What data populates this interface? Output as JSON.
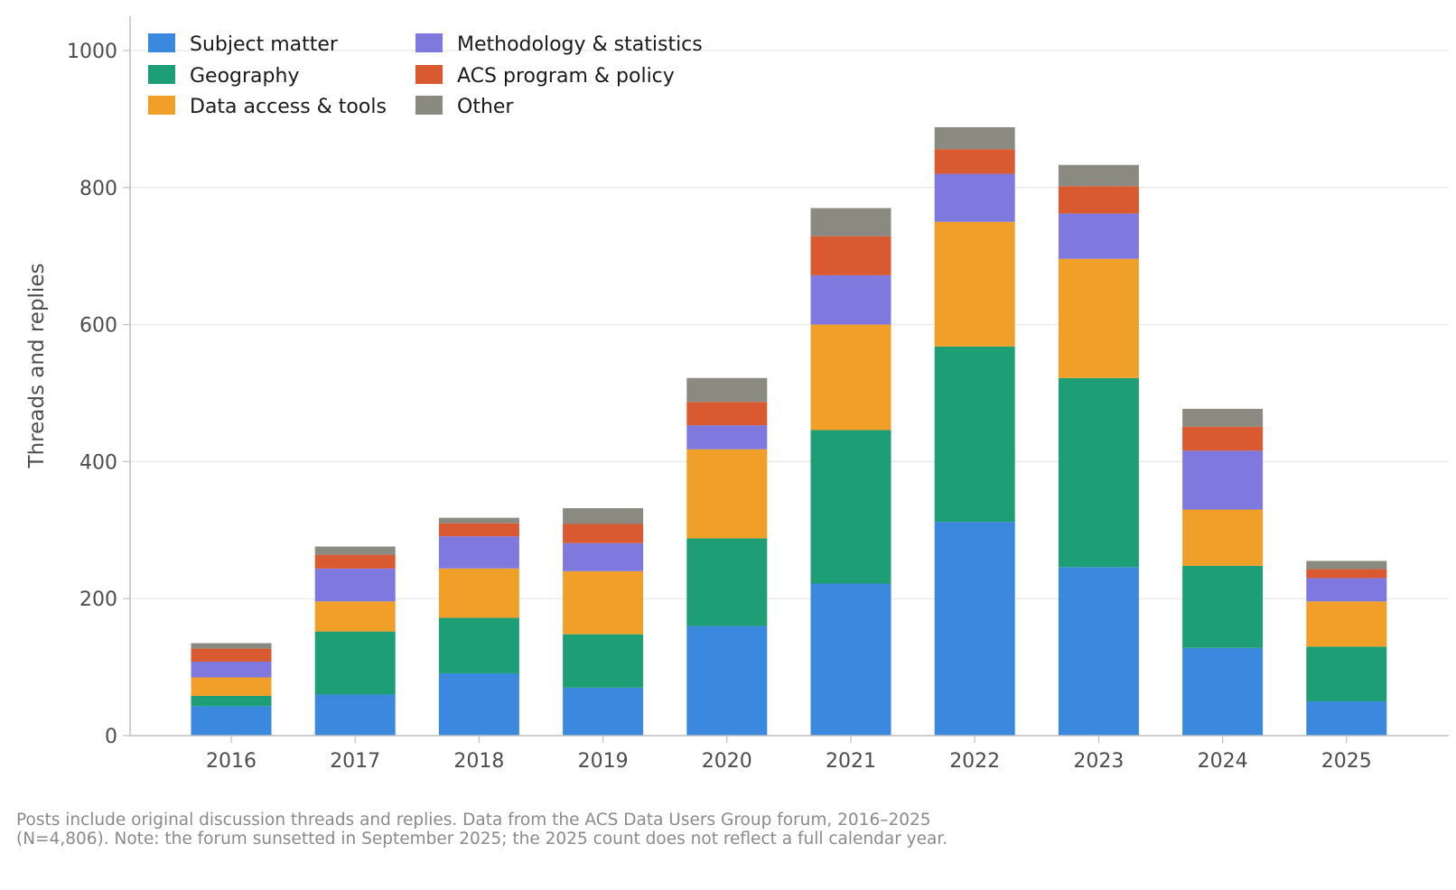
{
  "chart_data": {
    "type": "bar",
    "stacked": true,
    "categories": [
      "2016",
      "2017",
      "2018",
      "2019",
      "2020",
      "2021",
      "2022",
      "2023",
      "2024",
      "2025"
    ],
    "series": [
      {
        "name": "Subject matter",
        "color": "#3a89de",
        "values": [
          43,
          60,
          91,
          70,
          160,
          222,
          312,
          246,
          128,
          50
        ]
      },
      {
        "name": "Geography",
        "color": "#1d9e74",
        "values": [
          15,
          92,
          81,
          78,
          128,
          224,
          256,
          276,
          120,
          80
        ]
      },
      {
        "name": "Data access & tools",
        "color": "#f0a028",
        "values": [
          27,
          44,
          72,
          92,
          130,
          154,
          182,
          174,
          82,
          66
        ]
      },
      {
        "name": "Methodology & statistics",
        "color": "#7f78de",
        "values": [
          23,
          48,
          47,
          41,
          35,
          72,
          70,
          66,
          86,
          34
        ]
      },
      {
        "name": "ACS program & policy",
        "color": "#d95a30",
        "values": [
          19,
          20,
          19,
          28,
          34,
          57,
          36,
          40,
          35,
          13
        ]
      },
      {
        "name": "Other",
        "color": "#8a8a80",
        "values": [
          8,
          12,
          8,
          23,
          35,
          41,
          32,
          31,
          26,
          12
        ]
      }
    ],
    "ylabel": "Threads and replies",
    "ylim": [
      0,
      1050
    ],
    "yticks": [
      0,
      200,
      400,
      600,
      800,
      1000
    ],
    "grid": "horizontal",
    "legend_position": "top-left",
    "legend_columns": 2
  },
  "footnote": {
    "line1": "Posts include original discussion threads and replies. Data from the ACS Data Users Group forum, 2016–2025",
    "line2": "(N=4,806). Note: the forum sunsetted in September 2025; the 2025 count does not reflect a full calendar year."
  }
}
